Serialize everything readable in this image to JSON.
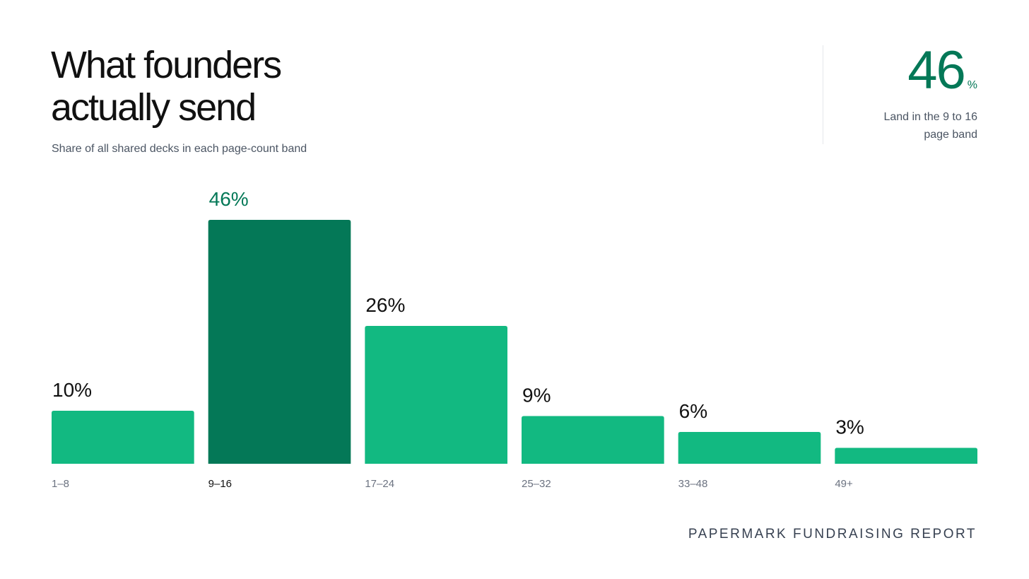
{
  "title_line1": "What founders",
  "title_line2": "actually send",
  "subtitle": "Share of all shared decks in each page-count band",
  "stat": {
    "value": "46",
    "unit": "%",
    "caption_line1": "Land in the 9 to 16",
    "caption_line2": "page band"
  },
  "footer": "PAPERMARK FUNDRAISING REPORT",
  "colors": {
    "bar": "#12b981",
    "highlight_bar": "#047857",
    "highlight_label": "#047857",
    "label": "#111111",
    "category": "#6b7280",
    "highlight_category": "#111111"
  },
  "chart_data": {
    "type": "bar",
    "categories": [
      "1–8",
      "9–16",
      "17–24",
      "25–32",
      "33–48",
      "49+"
    ],
    "values": [
      10,
      46,
      26,
      9,
      6,
      3
    ],
    "data_labels": [
      "10%",
      "46%",
      "26%",
      "9%",
      "6%",
      "3%"
    ],
    "highlight_index": 1,
    "ylim": [
      0,
      46
    ],
    "grid": false,
    "legend": "none",
    "title": "What founders actually send",
    "subtitle": "Share of all shared decks in each page-count band"
  }
}
